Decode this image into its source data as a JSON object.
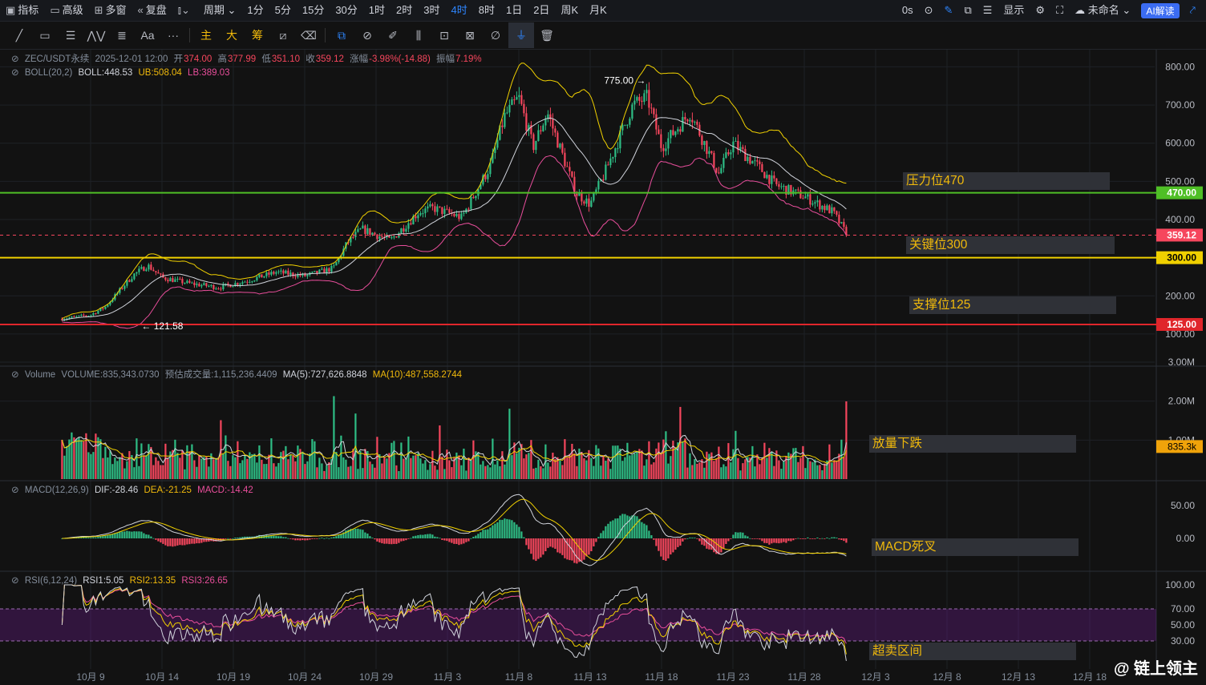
{
  "toolbar": {
    "items": [
      {
        "icon": "indicator-icon",
        "label": "指标"
      },
      {
        "icon": "advanced-icon",
        "label": "高级"
      },
      {
        "icon": "multiwindow-icon",
        "label": "多窗"
      },
      {
        "icon": "replay-icon",
        "label": "复盘"
      },
      {
        "icon": "candle-type-icon",
        "label": ""
      },
      {
        "icon": "",
        "label": "周期"
      }
    ],
    "timeframes": [
      "1分",
      "5分",
      "15分",
      "30分",
      "1时",
      "2时",
      "3时",
      "4时",
      "8时",
      "1日",
      "2日",
      "周K",
      "月K"
    ],
    "active_timeframe": "4时",
    "countdown": "0s",
    "display_label": "显示",
    "cloud_label": "未命名",
    "ai_label": "AI解读"
  },
  "drawing_tools": {
    "left": [
      "trendline-icon",
      "rect-icon",
      "fib-icon",
      "pattern-icon",
      "channel-icon",
      "Aa",
      "more-icon"
    ],
    "mid": [
      "主",
      "大",
      "筹"
    ],
    "right": [
      "tool-a-icon",
      "tool-b-icon",
      "ruler-icon",
      "brush-icon",
      "grid-icon",
      "lock-icon",
      "edit-icon",
      "magnet-icon",
      "filter-icon",
      "trash-icon"
    ]
  },
  "header": {
    "symbol": "ZEC/USDT永续",
    "datetime": "2025-12-01 12:00",
    "open_label": "开",
    "open": "374.00",
    "high_label": "高",
    "high": "377.99",
    "low_label": "低",
    "low": "351.10",
    "close_label": "收",
    "close": "359.12",
    "change_label": "涨幅",
    "change": "-3.98%(-14.88)",
    "amp_label": "振幅",
    "amp": "7.19%"
  },
  "boll_legend": {
    "name": "BOLL(20,2)",
    "mid": "BOLL:448.53",
    "ub": "UB:508.04",
    "lb": "LB:389.03"
  },
  "vol_legend": {
    "name": "Volume",
    "vol": "VOLUME:835,343.0730",
    "est": "预估成交量:1,115,236.4409",
    "ma5": "MA(5):727,626.8848",
    "ma10": "MA(10):487,558.2744"
  },
  "macd_legend": {
    "name": "MACD(12,26,9)",
    "dif": "DIF:-28.46",
    "dea": "DEA:-21.25",
    "macd": "MACD:-14.42"
  },
  "rsi_legend": {
    "name": "RSI(6,12,24)",
    "rsi1": "RSI1:5.05",
    "rsi2": "RSI2:13.35",
    "rsi3": "RSI3:26.65"
  },
  "annotations": {
    "resistance": "压力位470",
    "key": "关键位300",
    "support": "支撑位125",
    "volume": "放量下跌",
    "macd": "MACD死叉",
    "rsi": "超卖区间"
  },
  "watermark": "@ 链上领主",
  "colors": {
    "up": "#2ebd85",
    "down": "#f6465d",
    "green_line": "#4fbf26",
    "yellow_line": "#f0d000",
    "red_line": "#e0262b",
    "boll_ub": "#f0d000",
    "boll_mid": "#d1d4dc",
    "boll_lb": "#e84e9b"
  },
  "chart_data": [
    {
      "type": "candlestick",
      "title": "ZEC/USDT永续 4时",
      "x_ticks": [
        "10月 9",
        "10月 14",
        "10月 19",
        "10月 24",
        "10月 29",
        "11月 3",
        "11月 8",
        "11月 13",
        "11月 18",
        "11月 23",
        "11月 28",
        "12月 3",
        "12月 8",
        "12月 13",
        "12月 18"
      ],
      "y_ticks": [
        "100.00",
        "200.00",
        "300.00",
        "400.00",
        "500.00",
        "600.00",
        "700.00",
        "800.00"
      ],
      "ylim": [
        20,
        845
      ],
      "horizontal_lines": [
        {
          "label": "470.00",
          "value": 470,
          "color": "#4fbf26"
        },
        {
          "label": "300.00",
          "value": 300,
          "color": "#f0d000"
        },
        {
          "label": "125.00",
          "value": 125,
          "color": "#e0262b"
        }
      ],
      "last_price": {
        "label": "359.12",
        "value": 359.12
      },
      "max_marker": "775.00",
      "min_marker": "121.58",
      "price_path": [
        {
          "date": "10月 7",
          "price": 140
        },
        {
          "date": "10月 9",
          "price": 150
        },
        {
          "date": "10月 10",
          "price": 170
        },
        {
          "date": "10月 12",
          "price": 255
        },
        {
          "date": "10月 13",
          "price": 280
        },
        {
          "date": "10月 14",
          "price": 248
        },
        {
          "date": "10月 16",
          "price": 232
        },
        {
          "date": "10月 18",
          "price": 222
        },
        {
          "date": "10月 20",
          "price": 240
        },
        {
          "date": "10月 22",
          "price": 262
        },
        {
          "date": "10月 24",
          "price": 252
        },
        {
          "date": "10月 26",
          "price": 272
        },
        {
          "date": "10月 27",
          "price": 340
        },
        {
          "date": "10月 28",
          "price": 375
        },
        {
          "date": "10月 30",
          "price": 345
        },
        {
          "date": "11月 1",
          "price": 420
        },
        {
          "date": "11月 2",
          "price": 430
        },
        {
          "date": "11月 4",
          "price": 405
        },
        {
          "date": "11月 6",
          "price": 540
        },
        {
          "date": "11月 7",
          "price": 670
        },
        {
          "date": "11月 8",
          "price": 720
        },
        {
          "date": "11月 9",
          "price": 590
        },
        {
          "date": "11月 10",
          "price": 680
        },
        {
          "date": "11月 12",
          "price": 470
        },
        {
          "date": "11月 13",
          "price": 440
        },
        {
          "date": "11月 14",
          "price": 520
        },
        {
          "date": "11月 16",
          "price": 700
        },
        {
          "date": "11月 17",
          "price": 720
        },
        {
          "date": "11月 18",
          "price": 590
        },
        {
          "date": "11月 20",
          "price": 680
        },
        {
          "date": "11月 22",
          "price": 520
        },
        {
          "date": "11月 23",
          "price": 600
        },
        {
          "date": "11月 25",
          "price": 530
        },
        {
          "date": "11月 26",
          "price": 490
        },
        {
          "date": "11月 28",
          "price": 460
        },
        {
          "date": "11月 30",
          "price": 420
        },
        {
          "date": "12月 1",
          "price": 359.12
        }
      ],
      "boll": {
        "name": "BOLL(20,2)",
        "mid": 448.53,
        "ub": 508.04,
        "lb": 389.03
      }
    },
    {
      "type": "bar",
      "title": "Volume",
      "y_ticks": [
        "3.00M",
        "2.00M",
        "1.00M"
      ],
      "ylim": [
        0,
        3000000
      ],
      "last_label": "835.3k",
      "last_value": 835343.073,
      "ma5": 727626.8848,
      "ma10": 487558.2744
    },
    {
      "type": "line",
      "title": "MACD(12,26,9)",
      "y_ticks": [
        "50.00",
        "0.00"
      ],
      "dif": -28.46,
      "dea": -21.25,
      "macd": -14.42
    },
    {
      "type": "line",
      "title": "RSI(6,12,24)",
      "y_ticks": [
        "100.00",
        "70.00",
        "50.00",
        "30.00"
      ],
      "ylim": [
        0,
        100
      ],
      "rsi1": 5.05,
      "rsi2": 13.35,
      "rsi3": 26.65
    }
  ]
}
